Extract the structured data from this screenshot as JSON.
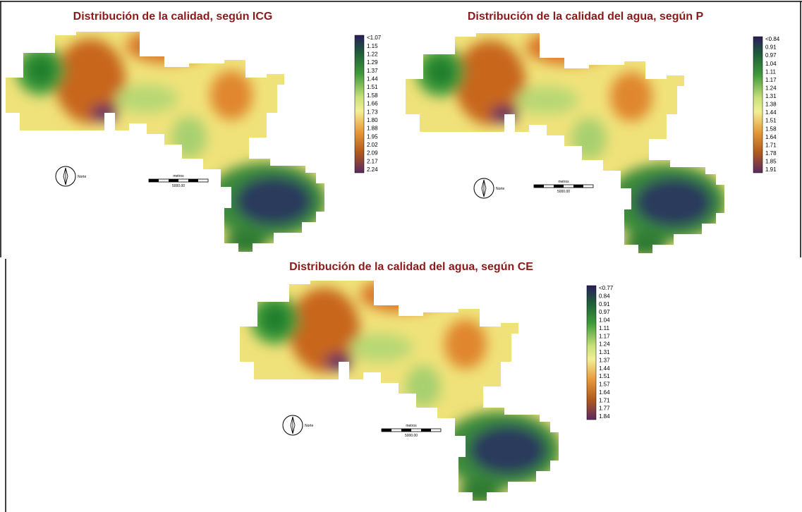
{
  "panels": [
    {
      "title": "Distribución de la calidad, según ICG",
      "legend": [
        "<1.07",
        "1.15",
        "1.22",
        "1.29",
        "1.37",
        "1.44",
        "1.51",
        "1.58",
        "1.66",
        "1.73",
        "1.80",
        "1.88",
        "1.95",
        "2.02",
        "2.09",
        "2.17",
        "2.24"
      ],
      "north": "Norte",
      "scale_unit": "metros",
      "scale_length": "5000.00"
    },
    {
      "title": "Distribución de la calidad del agua, según P",
      "legend": [
        "<0.84",
        "0.91",
        "0.97",
        "1.04",
        "1.11",
        "1.17",
        "1.24",
        "1.31",
        "1.38",
        "1.44",
        "1.51",
        "1.58",
        "1.64",
        "1.71",
        "1.78",
        "1.85",
        "1.91"
      ],
      "north": "Norte",
      "scale_unit": "metros",
      "scale_length": "5000.00"
    },
    {
      "title": "Distribución de la calidad del agua, según CE",
      "legend": [
        "<0.77",
        "0.84",
        "0.91",
        "0.97",
        "1.04",
        "1.11",
        "1.17",
        "1.24",
        "1.31",
        "1.37",
        "1.44",
        "1.51",
        "1.57",
        "1.64",
        "1.71",
        "1.77",
        "1.84"
      ],
      "north": "Norte",
      "scale_unit": "metros",
      "scale_length": "5000.00"
    }
  ]
}
